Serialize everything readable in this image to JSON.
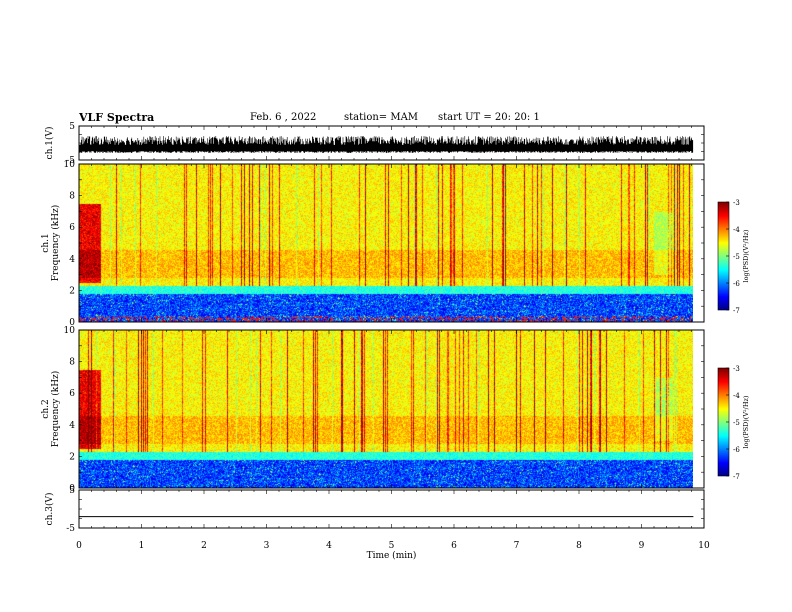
{
  "header": {
    "title": "VLF Spectra",
    "date": "Feb. 6 , 2022",
    "station": "station= MAM",
    "start_ut": "start  UT =   20: 20: 1"
  },
  "chart_data": [
    {
      "type": "line",
      "panel": "ch1-waveform",
      "ylabel": "ch.1(V)",
      "ylim": [
        -5,
        5
      ],
      "yticks": [
        "5",
        "-5"
      ],
      "description_values": "dense broadband noise, roughly -3 V to +3 V across 0-10 min"
    },
    {
      "type": "heatmap",
      "panel": "ch1-spectrogram",
      "ylabel_line1": "ch.1",
      "ylabel_line2": "Frequency  (kHz)",
      "ylim": [
        0,
        10
      ],
      "yticks": [
        "0",
        "2",
        "4",
        "6",
        "8",
        "10"
      ],
      "colorbar": {
        "label": "log(PSD)(V²/Hz)",
        "range": [
          -7,
          -3
        ],
        "ticks": [
          "-3",
          "-4",
          "-5",
          "-6",
          "-7"
        ]
      }
    },
    {
      "type": "heatmap",
      "panel": "ch2-spectrogram",
      "ylabel_line1": "ch.2",
      "ylabel_line2": "Frequency  (kHz)",
      "ylim": [
        0,
        10
      ],
      "yticks": [
        "0",
        "2",
        "4",
        "6",
        "8",
        "10"
      ],
      "colorbar": {
        "label": "log(PSD)(V²/Hz)",
        "range": [
          -7,
          -3
        ],
        "ticks": [
          "-3",
          "-4",
          "-5",
          "-6",
          "-7"
        ]
      }
    },
    {
      "type": "line",
      "panel": "ch3-waveform",
      "ylabel": "ch.3(V)",
      "ylim": [
        -5,
        5
      ],
      "yticks": [
        "5",
        "-5"
      ],
      "values_constant": -2
    }
  ],
  "xaxis": {
    "label": "Time  (min)",
    "range": [
      0,
      10
    ],
    "ticks": [
      "0",
      "1",
      "2",
      "3",
      "4",
      "5",
      "6",
      "7",
      "8",
      "9",
      "10"
    ],
    "data_end": 9.83
  }
}
